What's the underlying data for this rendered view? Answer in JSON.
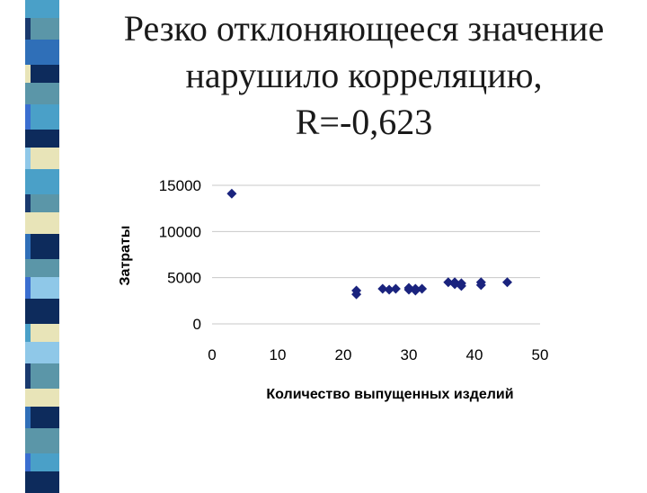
{
  "slide": {
    "title_lines": [
      "Резко отклоняющееся значение",
      "нарушило корреляцию,",
      "R=-0,623"
    ]
  },
  "decor": {
    "stripe_colors": [
      "#4aa0c8",
      "#1a3a6e",
      "#2f6fb8",
      "#e8e4b8",
      "#5b96a8",
      "#3a6ed0",
      "#0d2b5c",
      "#8fc8e8",
      "#000000"
    ]
  },
  "chart_data": {
    "type": "scatter",
    "title": "",
    "xlabel": "Количество выпущенных изделий",
    "ylabel": "Затраты",
    "xlim": [
      0,
      50
    ],
    "ylim": [
      0,
      15000
    ],
    "x_ticks": [
      0,
      10,
      20,
      30,
      40,
      50
    ],
    "y_ticks": [
      0,
      5000,
      10000,
      15000
    ],
    "grid": "horizontal",
    "marker": "diamond",
    "marker_color": "#1a237e",
    "points": [
      {
        "x": 3,
        "y": 14100
      },
      {
        "x": 22,
        "y": 3200
      },
      {
        "x": 22,
        "y": 3600
      },
      {
        "x": 26,
        "y": 3800
      },
      {
        "x": 27,
        "y": 3700
      },
      {
        "x": 28,
        "y": 3800
      },
      {
        "x": 30,
        "y": 3700
      },
      {
        "x": 30,
        "y": 3900
      },
      {
        "x": 31,
        "y": 3600
      },
      {
        "x": 31,
        "y": 3800
      },
      {
        "x": 32,
        "y": 3800
      },
      {
        "x": 36,
        "y": 4500
      },
      {
        "x": 37,
        "y": 4500
      },
      {
        "x": 37,
        "y": 4300
      },
      {
        "x": 38,
        "y": 4100
      },
      {
        "x": 38,
        "y": 4400
      },
      {
        "x": 41,
        "y": 4500
      },
      {
        "x": 41,
        "y": 4200
      },
      {
        "x": 45,
        "y": 4500
      }
    ]
  }
}
